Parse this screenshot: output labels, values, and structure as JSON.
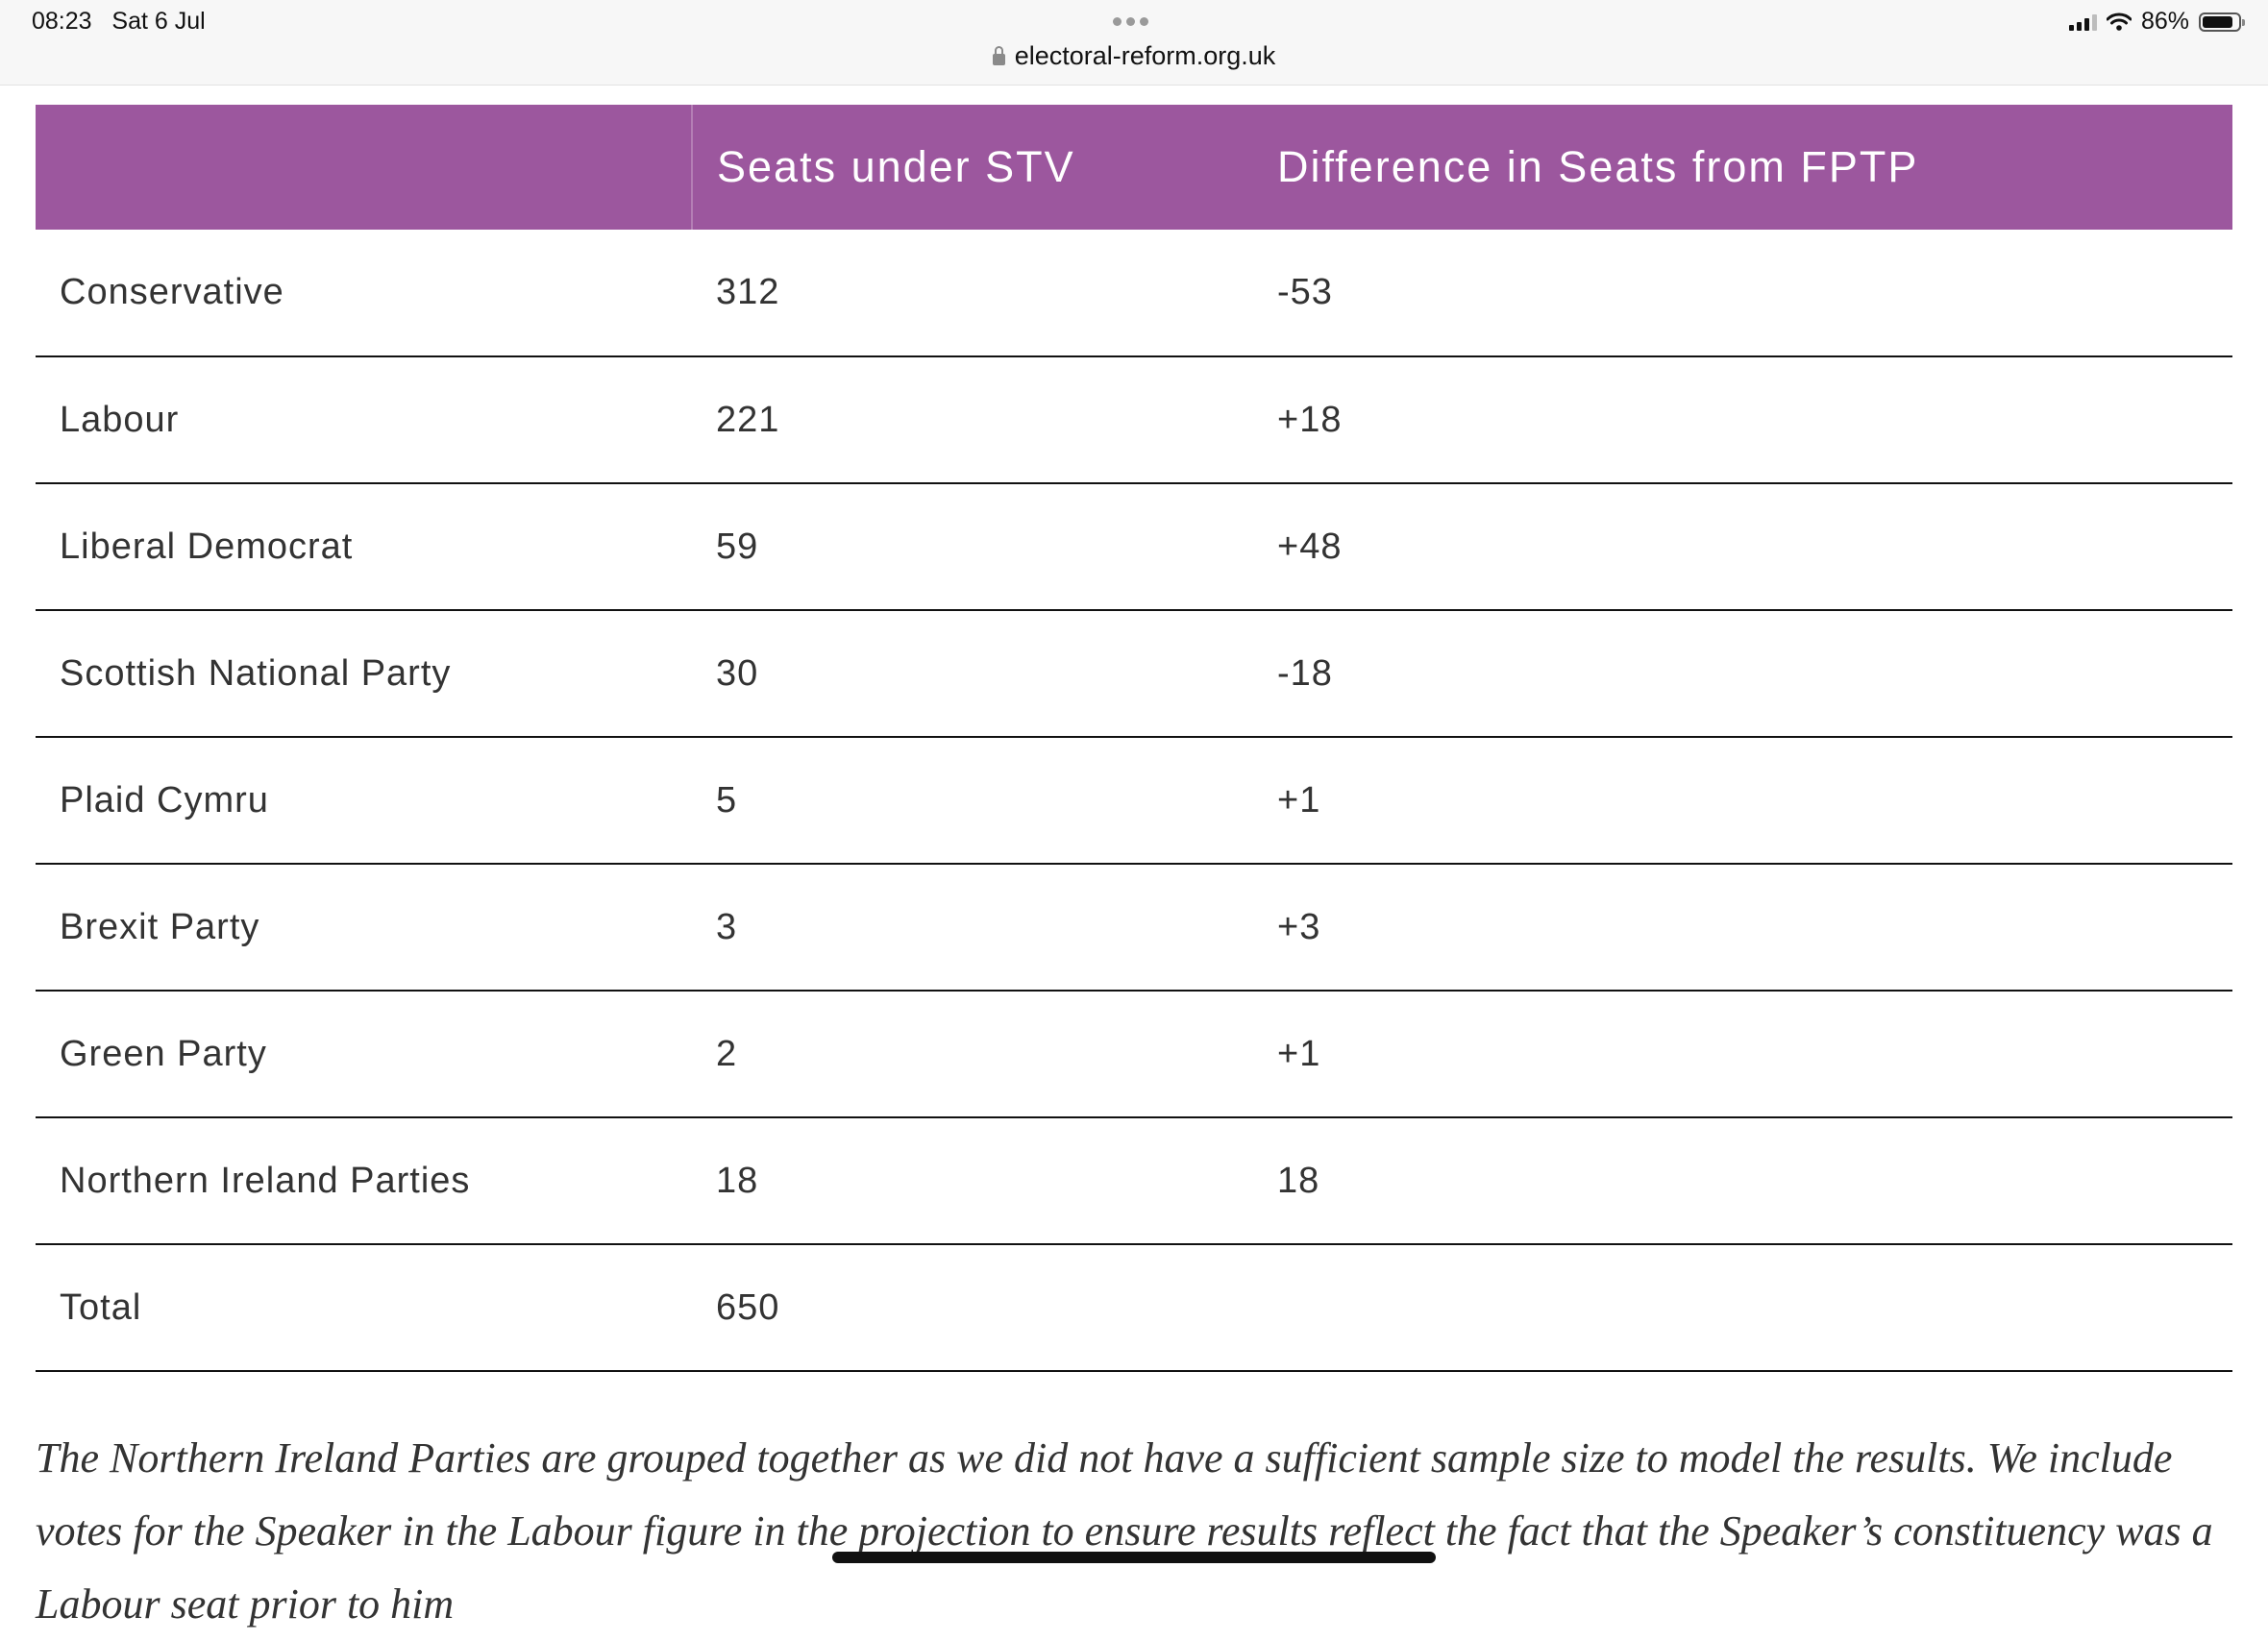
{
  "status_bar": {
    "time": "08:23",
    "date": "Sat 6 Jul",
    "url": "electoral-reform.org.uk",
    "battery": "86%",
    "battery_level": 0.86,
    "icons": [
      "lock-icon",
      "signal-icon",
      "wifi-icon",
      "battery-icon"
    ]
  },
  "table": {
    "header_color": "#9c579e",
    "headers": [
      "",
      "Seats under STV",
      "Difference in Seats from FPTP"
    ],
    "rows": [
      {
        "party": "Conservative",
        "seats": "312",
        "diff": "-53"
      },
      {
        "party": "Labour",
        "seats": "221",
        "diff": "+18"
      },
      {
        "party": "Liberal Democrat",
        "seats": "59",
        "diff": "+48"
      },
      {
        "party": "Scottish National Party",
        "seats": "30",
        "diff": "-18"
      },
      {
        "party": "Plaid Cymru",
        "seats": "5",
        "diff": "+1"
      },
      {
        "party": "Brexit Party",
        "seats": "3",
        "diff": "+3"
      },
      {
        "party": "Green Party",
        "seats": "2",
        "diff": "+1"
      },
      {
        "party": "Northern Ireland Parties",
        "seats": "18",
        "diff": "18"
      },
      {
        "party": "Total",
        "seats": "650",
        "diff": ""
      }
    ]
  },
  "footnote": "The Northern Ireland Parties are grouped together as we did not have a sufficient sample size to model the results. We include votes for the Speaker in the Labour figure in the projection to ensure results reflect the fact that the Speaker’s constituency was a Labour seat prior to him"
}
